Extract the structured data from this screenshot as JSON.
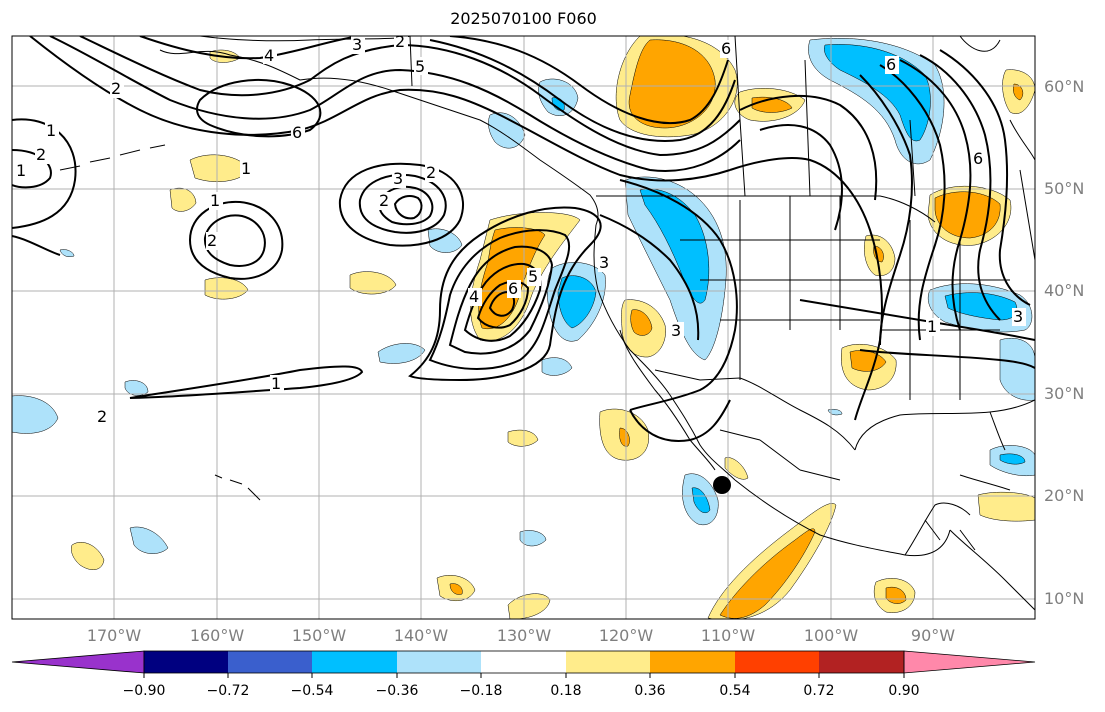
{
  "title": "2025070100 F060",
  "latitude_labels": [
    "60°N",
    "50°N",
    "40°N",
    "30°N",
    "20°N",
    "10°N"
  ],
  "longitude_labels": [
    "170°W",
    "160°W",
    "150°W",
    "140°W",
    "130°W",
    "120°W",
    "110°W",
    "100°W",
    "90°W"
  ],
  "colorbar": {
    "tick_labels": [
      "−0.90",
      "−0.72",
      "−0.54",
      "−0.36",
      "−0.18",
      "0.18",
      "0.36",
      "0.54",
      "0.72",
      "0.90"
    ],
    "colors": [
      "#9932cc",
      "#000080",
      "#3a5fcd",
      "#00bfff",
      "#aee2fa",
      "#ffffff",
      "#ffec8b",
      "#ffa500",
      "#ff4000",
      "#b22222",
      "#ff88aa"
    ]
  },
  "contour_labels": [
    "4",
    "3",
    "2",
    "5",
    "6",
    "2",
    "1",
    "2",
    "2",
    "1",
    "3",
    "2",
    "1",
    "2",
    "1",
    "6",
    "5",
    "4",
    "3",
    "6",
    "6",
    "6",
    "2",
    "1",
    "3",
    "1",
    "3"
  ],
  "colors": {
    "contour": "#000000",
    "grid": "#b0b0b0",
    "marker": "#000000"
  }
}
